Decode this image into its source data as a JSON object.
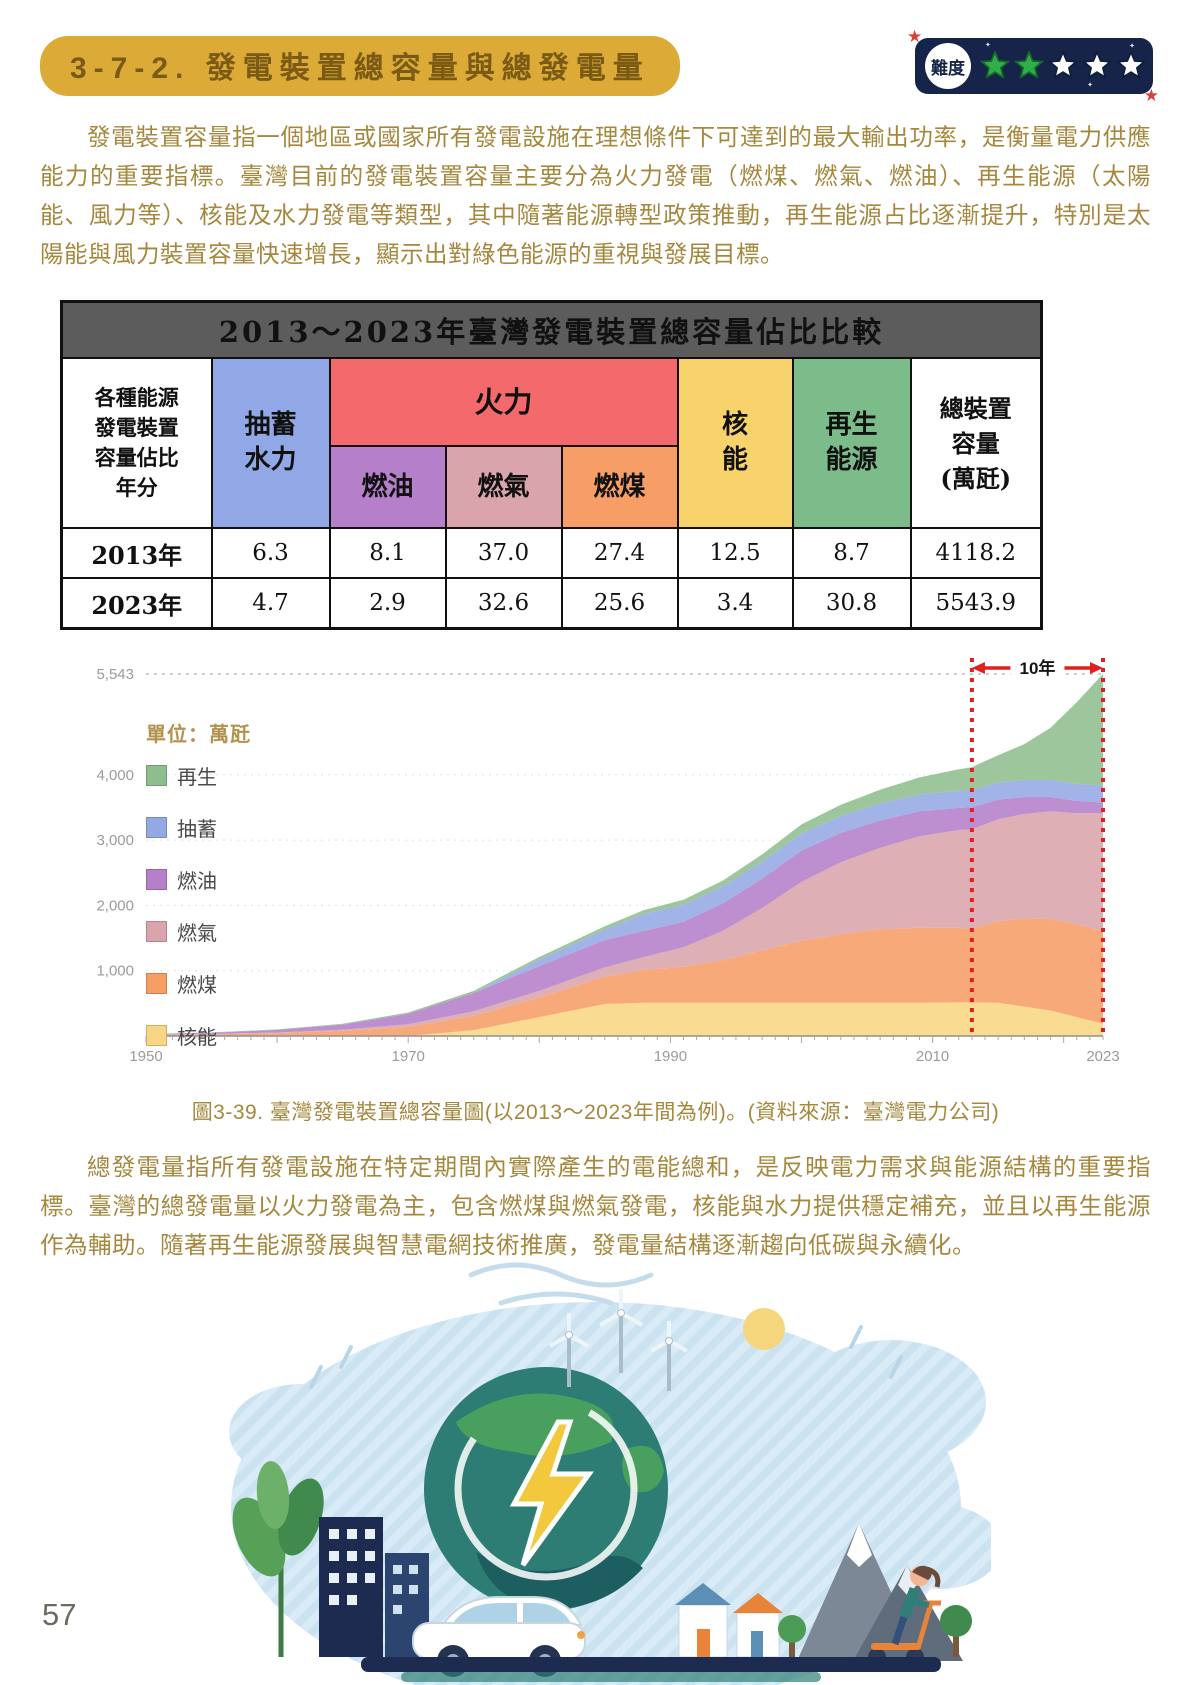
{
  "header": {
    "section_title": "3-7-2. 發電裝置總容量與總發電量",
    "difficulty_label": "難度",
    "difficulty": {
      "filled": 2,
      "total": 5
    }
  },
  "paragraphs": {
    "p1": "發電裝置容量指一個地區或國家所有發電設施在理想條件下可達到的最大輸出功率，是衡量電力供應能力的重要指標。臺灣目前的發電裝置容量主要分為火力發電（燃煤、燃氣、燃油）、再生能源（太陽能、風力等）、核能及水力發電等類型，其中隨著能源轉型政策推動，再生能源占比逐漸提升，特別是太陽能與風力裝置容量快速增長，顯示出對綠色能源的重視與發展目標。",
    "p2": "總發電量指所有發電設施在特定期間內實際產生的電能總和，是反映電力需求與能源結構的重要指標。臺灣的總發電量以火力發電為主，包含燃煤與燃氣發電，核能與水力提供穩定補充，並且以再生能源作為輔助。隨著再生能源發展與智慧電網技術推廣，發電量結構逐漸趨向低碳與永續化。"
  },
  "table": {
    "title": "2013～2023年臺灣發電裝置總容量佔比比較",
    "corner": "各種能源\n發電裝置\n容量佔比\n年分",
    "col_pumped": "抽蓄\n水力",
    "col_thermal": "火力",
    "col_oil": "燃油",
    "col_gas": "燃氣",
    "col_coal": "燃煤",
    "col_nuclear": "核\n能",
    "col_renewable": "再生\n能源",
    "col_total": "總裝置\n容量\n(萬瓩)",
    "rows": [
      {
        "year": "2013年",
        "values": [
          "6.3",
          "8.1",
          "37.0",
          "27.4",
          "12.5",
          "8.7",
          "4118.2"
        ]
      },
      {
        "year": "2023年",
        "values": [
          "4.7",
          "2.9",
          "32.6",
          "25.6",
          "3.4",
          "30.8",
          "5543.9"
        ]
      }
    ]
  },
  "chart_data": {
    "type": "area",
    "stacked": true,
    "unit_label": "單位：萬瓩",
    "xlabel": "",
    "ylabel": "萬瓩",
    "ylim": [
      0,
      5543
    ],
    "yticks_labels": [
      "5,543",
      "4,000",
      "3,000",
      "2,000",
      "1,000"
    ],
    "ytick_values": [
      5543,
      4000,
      3000,
      2000,
      1000
    ],
    "xticks": [
      1950,
      1970,
      1990,
      2010,
      2023
    ],
    "legend_position": "upper-left",
    "x": [
      1950,
      1955,
      1960,
      1965,
      1970,
      1975,
      1980,
      1985,
      1988,
      1991,
      1994,
      1997,
      2000,
      2003,
      2006,
      2009,
      2012,
      2013,
      2015,
      2017,
      2019,
      2021,
      2023
    ],
    "series": [
      {
        "name": "再生",
        "color": "#8fbe8e",
        "values": [
          3,
          5,
          8,
          12,
          20,
          30,
          40,
          50,
          60,
          75,
          90,
          110,
          140,
          170,
          210,
          260,
          330,
          358,
          420,
          550,
          800,
          1250,
          1708
        ]
      },
      {
        "name": "抽蓄",
        "color": "#94a9e4",
        "values": [
          0,
          0,
          0,
          0,
          0,
          0,
          100,
          160,
          260,
          260,
          260,
          260,
          260,
          260,
          260,
          260,
          259,
          259,
          260,
          260,
          260,
          260,
          261
        ]
      },
      {
        "name": "燃油",
        "color": "#b57fca",
        "values": [
          10,
          20,
          40,
          80,
          160,
          280,
          380,
          420,
          400,
          390,
          420,
          450,
          480,
          450,
          420,
          380,
          340,
          334,
          300,
          260,
          220,
          190,
          161
        ]
      },
      {
        "name": "燃氣",
        "color": "#d9a4ab",
        "values": [
          3,
          5,
          8,
          15,
          40,
          70,
          100,
          140,
          200,
          300,
          450,
          650,
          900,
          1100,
          1250,
          1400,
          1500,
          1524,
          1560,
          1600,
          1650,
          1700,
          1807
        ]
      },
      {
        "name": "燃煤",
        "color": "#f79d66",
        "values": [
          15,
          25,
          45,
          80,
          140,
          220,
          300,
          420,
          500,
          550,
          650,
          800,
          950,
          1050,
          1120,
          1150,
          1140,
          1128,
          1250,
          1350,
          1400,
          1420,
          1419
        ]
      },
      {
        "name": "核能",
        "color": "#f8d683",
        "values": [
          0,
          0,
          0,
          0,
          0,
          90,
          290,
          490,
          510,
          510,
          510,
          510,
          510,
          510,
          510,
          510,
          515,
          515,
          510,
          450,
          390,
          290,
          188
        ]
      }
    ],
    "annotation": {
      "label": "10年",
      "x_start": 2013,
      "x_end": 2023,
      "color": "#e02020"
    }
  },
  "figure_caption": "圖3-39. 臺灣發電裝置總容量圖(以2013～2023年間為例)。(資料來源：臺灣電力公司)",
  "page": {
    "number": "57"
  },
  "colors": {
    "body_text": "#a5883e",
    "title_pill_bg": "#dcab37",
    "table_title_bg": "#5c5c5c",
    "badge_bg": "#152448",
    "star_filled": "#2fae4a",
    "annotation_red": "#e02020"
  }
}
